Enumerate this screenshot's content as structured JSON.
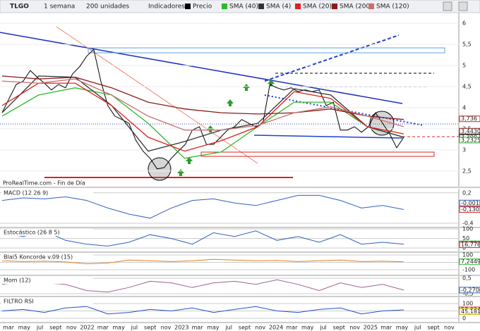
{
  "toolbar": {
    "ticker": "TLGO",
    "period": "1 semana",
    "units": "200 unidades",
    "indicators": "Indicadores"
  },
  "footer": "ProRealTime.com - Fin de Día",
  "time_axis": [
    "mar",
    "may",
    "jul",
    "sept",
    "nov",
    "2022",
    "mar",
    "may",
    "jul",
    "sept",
    "nov",
    "2023",
    "mar",
    "may",
    "jul",
    "sept",
    "nov",
    "2024",
    "mar",
    "may",
    "jul",
    "sept",
    "nov",
    "2025",
    "mar",
    "may",
    "jul",
    "sept",
    "nov"
  ],
  "chart_data": [
    {
      "type": "line",
      "ylim": [
        2.13,
        6.25
      ],
      "yticks": [
        {
          "value": 2.5,
          "label": "2,5"
        },
        3,
        {
          "value": 3.5,
          "label": "3,5"
        },
        4,
        {
          "value": 4.5,
          "label": "4,5"
        },
        5,
        {
          "value": 5.5,
          "label": "5,5"
        },
        6
      ],
      "series": [
        {
          "name": "Precio",
          "color": "#000000",
          "values": [
            3.88,
            4.22,
            4.55,
            4.63,
            4.88,
            4.72,
            4.58,
            4.42,
            4.55,
            4.47,
            4.8,
            4.97,
            5.22,
            5.38,
            4.63,
            4.05,
            3.8,
            3.72,
            3.63,
            3.22,
            2.97,
            2.8,
            2.55,
            2.58,
            2.8,
            2.97,
            3.13,
            3.47,
            3.55,
            3.13,
            3.13,
            3.3,
            3.47,
            3.55,
            3.72,
            3.63,
            3.55,
            3.63,
            4.55,
            4.47,
            4.42,
            4.47,
            4.38,
            4.42,
            4.38,
            4.42,
            4.05,
            4.13,
            3.47,
            3.47,
            3.55,
            3.42,
            3.55,
            3.88,
            3.63,
            3.38,
            3.05,
            3.3
          ]
        },
        {
          "name": "SMA (40)",
          "color": "#2eb82e",
          "values": [
            3.8,
            4.3,
            4.47,
            4.3,
            3.63,
            2.8,
            2.95,
            3.55,
            4.13,
            4.13,
            3.55,
            3.3
          ]
        },
        {
          "name": "SMA (4)",
          "color": "#333333",
          "values": [
            3.88,
            4.75,
            4.72,
            4.05,
            2.97,
            3.2,
            3.47,
            3.63,
            4.45,
            4.3,
            3.55,
            3.3
          ]
        },
        {
          "name": "SMA (20)",
          "color": "#e02020",
          "values": [
            4.05,
            4.58,
            4.58,
            4.05,
            3.3,
            2.97,
            3.22,
            3.55,
            4.38,
            4.22,
            3.55,
            3.38
          ]
        },
        {
          "name": "SMA (200)",
          "color": "#8b1a1a",
          "values": [
            4.75,
            4.68,
            4.72,
            4.47,
            4.13,
            3.97,
            3.88,
            3.85,
            3.88,
            3.97,
            3.8,
            3.72
          ]
        },
        {
          "name": "SMA (120)",
          "color": "#c87070",
          "values": [
            4.63,
            4.58,
            4.68,
            4.3,
            3.8,
            3.47,
            3.47,
            3.58,
            3.88,
            4.02,
            3.8,
            3.55
          ]
        }
      ],
      "price_labels": [
        {
          "value": 3.736,
          "label": "3,736",
          "color": "#e02020"
        },
        {
          "value": 3.443,
          "label": "3,4430",
          "color": "#8b1a1a"
        },
        {
          "value": 3.3,
          "label": "3,300",
          "color": "#000000"
        },
        {
          "value": 3.2325,
          "label": "3,2325",
          "color": "#2eb82e"
        }
      ]
    },
    {
      "type": "line",
      "ylim": [
        -0.47,
        0.28
      ],
      "yticks": [
        {
          "value": 0.2,
          "label": "0,2"
        },
        {
          "value": -0.4,
          "label": "-0,4"
        }
      ],
      "series": [
        {
          "name": "MACD (12 26 9)",
          "color": "#3060c0",
          "values": [
            0.05,
            0.1,
            0.08,
            0.12,
            0.05,
            -0.1,
            -0.22,
            -0.3,
            -0.1,
            0.05,
            0.08,
            0,
            -0.05,
            0.05,
            0.15,
            0.15,
            0.05,
            -0.1,
            -0.05,
            -0.13
          ]
        }
      ],
      "price_labels": [
        {
          "value": -0.0015,
          "label": "-0,0015",
          "color": "#3060c0"
        },
        {
          "value": -0.1307,
          "label": "-0,1307",
          "color": "#e02020"
        }
      ]
    },
    {
      "type": "line",
      "ylim": [
        -18,
        104
      ],
      "yticks": [
        100,
        50,
        0
      ],
      "series": [
        {
          "name": "Estocástico (26 8 5)",
          "color": "#3060c0",
          "values": [
            80,
            60,
            90,
            40,
            20,
            10,
            30,
            70,
            50,
            20,
            80,
            60,
            90,
            40,
            60,
            30,
            70,
            20,
            30,
            20
          ]
        }
      ],
      "price_labels": [
        {
          "value": 21.771,
          "label": "21,771",
          "color": "#2eb82e"
        },
        {
          "value": 16.776,
          "label": "16,776",
          "color": "#e02020"
        }
      ]
    },
    {
      "type": "line",
      "ylim": [
        -167,
        128
      ],
      "yticks": [
        100,
        0,
        -100
      ],
      "series": [
        {
          "name": "Blai5 Koncorde v.09 (15)",
          "color": "#e08020",
          "values": [
            20,
            10,
            15,
            5,
            -20,
            -10,
            30,
            20,
            10,
            20,
            40,
            30,
            20,
            25,
            10,
            20,
            30,
            10,
            15,
            7
          ]
        }
      ],
      "price_labels": [
        {
          "value": 7.2449,
          "label": "7,2449",
          "color": "#2eb82e"
        }
      ]
    },
    {
      "type": "line",
      "ylim": [
        -0.64,
        0.64
      ],
      "yticks": [
        {
          "value": 0.5,
          "label": "0,5"
        },
        {
          "value": -0.5,
          "label": "-0,5"
        }
      ],
      "series": [
        {
          "name": "Mom (12)",
          "color": "#a06090",
          "values": [
            0.1,
            0.3,
            0.2,
            0.1,
            -0.3,
            -0.4,
            -0.1,
            0.3,
            0.2,
            -0.1,
            0.2,
            0.3,
            0.1,
            0.4,
            0.1,
            -0.3,
            0.2,
            -0.1,
            0.1,
            -0.27
          ]
        }
      ],
      "price_labels": [
        {
          "value": -0.27,
          "label": "-0,2700",
          "color": "#3060c0"
        }
      ]
    },
    {
      "type": "line",
      "ylim": [
        -24,
        143
      ],
      "yticks": [
        100,
        50,
        0
      ],
      "series": [
        {
          "name": "FILTRO RSI",
          "color": "#2050d0",
          "values": [
            50,
            60,
            40,
            70,
            80,
            30,
            40,
            60,
            50,
            70,
            40,
            60,
            80,
            50,
            40,
            60,
            70,
            30,
            50,
            57
          ]
        }
      ],
      "price_labels": [
        {
          "value": 57.034,
          "label": "57,034",
          "color": "#e02020"
        },
        {
          "value": 45.181,
          "label": "45,181",
          "color": "#d0b000"
        }
      ]
    }
  ]
}
